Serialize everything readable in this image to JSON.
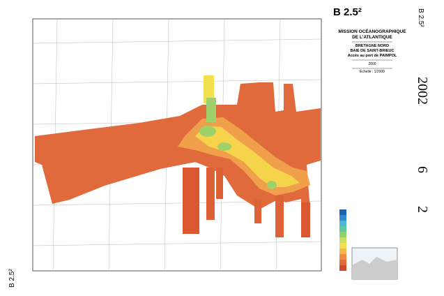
{
  "header": {
    "code": "B 2.5²",
    "side_code": "B 2.5²",
    "bottom_code": "B 2.5²"
  },
  "title": {
    "mission": "MISSION OCÉANOGRAPHIQUE",
    "mission2": "DE L'ATLANTIQUE",
    "region": "BRETAGNE NORD",
    "bay": "BAIE DE SAINT-BRIEUC",
    "subject": "Accès au port de PAIMPOL",
    "year": "2000",
    "scale": "Échelle : 1/2000"
  },
  "margin": {
    "year": "2002",
    "num1": "6",
    "num2": "2"
  }
}
